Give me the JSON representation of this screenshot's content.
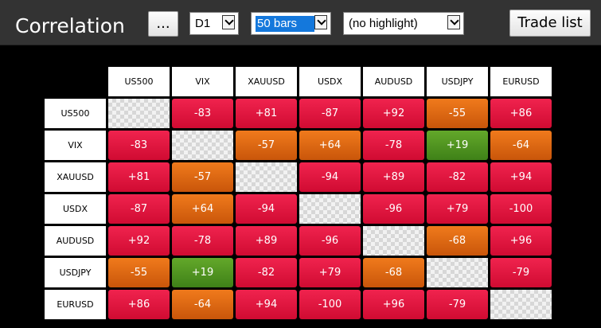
{
  "window": {
    "title": "Correlation",
    "more_button": "...",
    "timeframe": "D1",
    "bars": "50 bars",
    "highlight": "(no highlight)",
    "trade_list_button": "Trade list"
  },
  "colors": {
    "strong": "#e0163f",
    "moderate": "#e06a14",
    "weak": "#52962a",
    "background": "#000000",
    "toolbar": "#333333"
  },
  "matrix": {
    "symbols": [
      "US500",
      "VIX",
      "XAUUSD",
      "USDX",
      "AUDUSD",
      "USDJPY",
      "EURUSD"
    ],
    "values": [
      [
        "",
        "-83",
        "+81",
        "-87",
        "+92",
        "-55",
        "+86"
      ],
      [
        "-83",
        "",
        "-57",
        "+64",
        "-78",
        "+19",
        "-64"
      ],
      [
        "+81",
        "-57",
        "",
        "-94",
        "+89",
        "-82",
        "+94"
      ],
      [
        "-87",
        "+64",
        "-94",
        "",
        "-96",
        "+79",
        "-100"
      ],
      [
        "+92",
        "-78",
        "+89",
        "-96",
        "",
        "-68",
        "+96"
      ],
      [
        "-55",
        "+19",
        "-82",
        "+79",
        "-68",
        "",
        "-79"
      ],
      [
        "+86",
        "-64",
        "+94",
        "-100",
        "+96",
        "-79",
        ""
      ]
    ]
  }
}
